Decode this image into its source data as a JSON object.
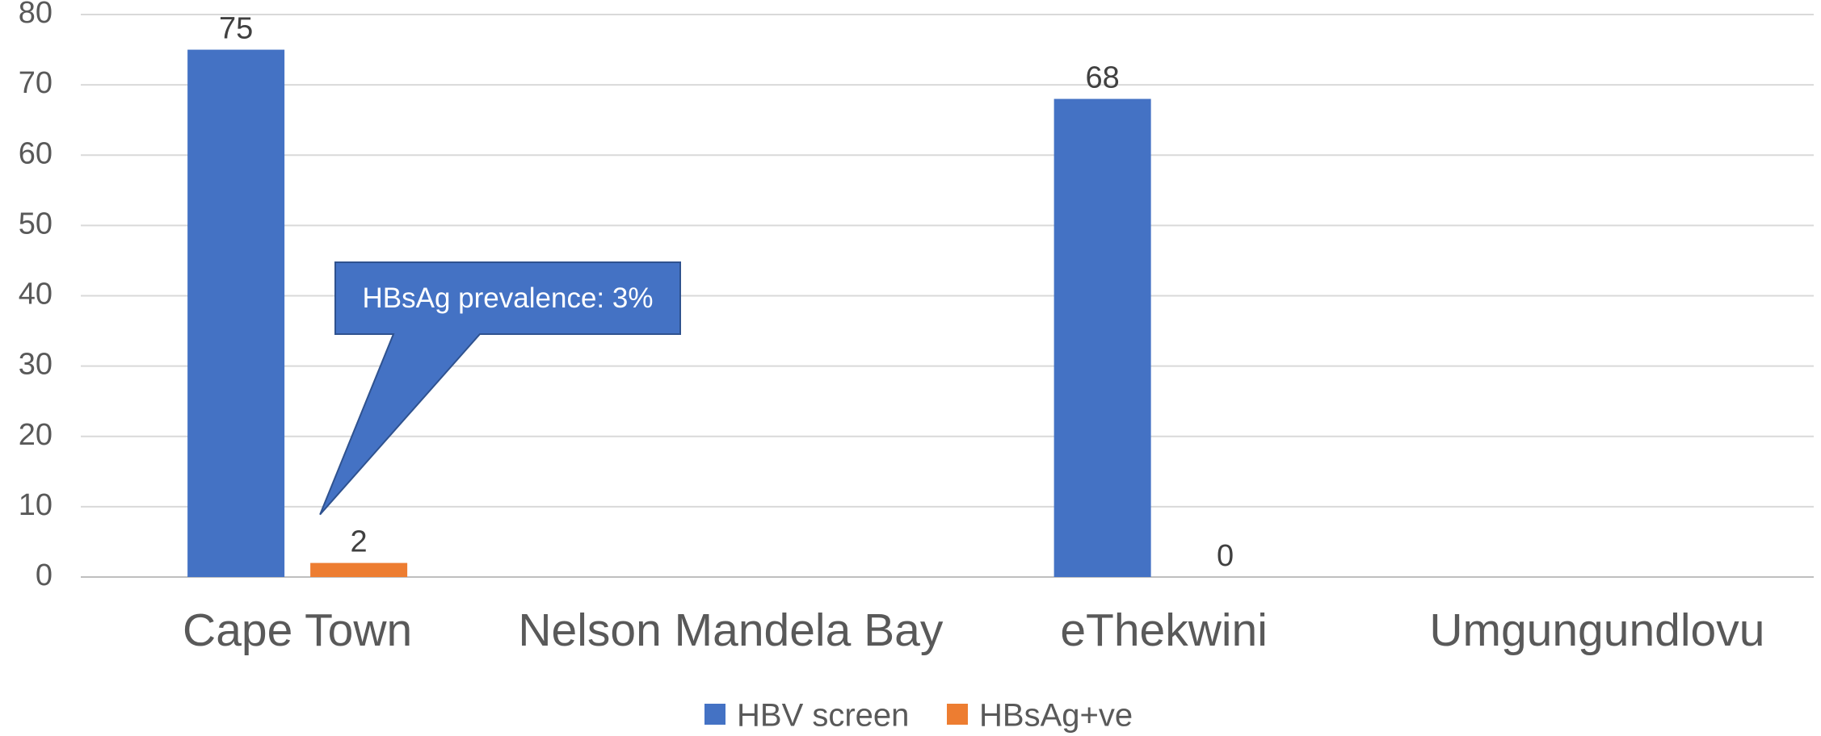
{
  "chart_data": {
    "type": "bar",
    "categories": [
      "Cape Town",
      "Nelson Mandela Bay",
      "eThekwini",
      "Umgungundlovu"
    ],
    "series": [
      {
        "name": "HBV screen",
        "color": "#4472C4",
        "values": [
          75,
          null,
          68,
          null
        ],
        "data_labels": [
          "75",
          null,
          "68",
          null
        ]
      },
      {
        "name": "HBsAg+ve",
        "color": "#ED7D31",
        "values": [
          2,
          null,
          0,
          null
        ],
        "data_labels": [
          "2",
          null,
          "0",
          null
        ]
      }
    ],
    "ylim": [
      0,
      80
    ],
    "yticks": [
      0,
      10,
      20,
      30,
      40,
      50,
      60,
      70,
      80
    ],
    "grid": true,
    "legend_position": "bottom",
    "annotations": [
      {
        "text": "HBsAg prevalence: 3%",
        "category": "Cape Town",
        "series": "HBsAg+ve",
        "fill": "#4472C4",
        "text_color": "#FFFFFF"
      }
    ]
  }
}
